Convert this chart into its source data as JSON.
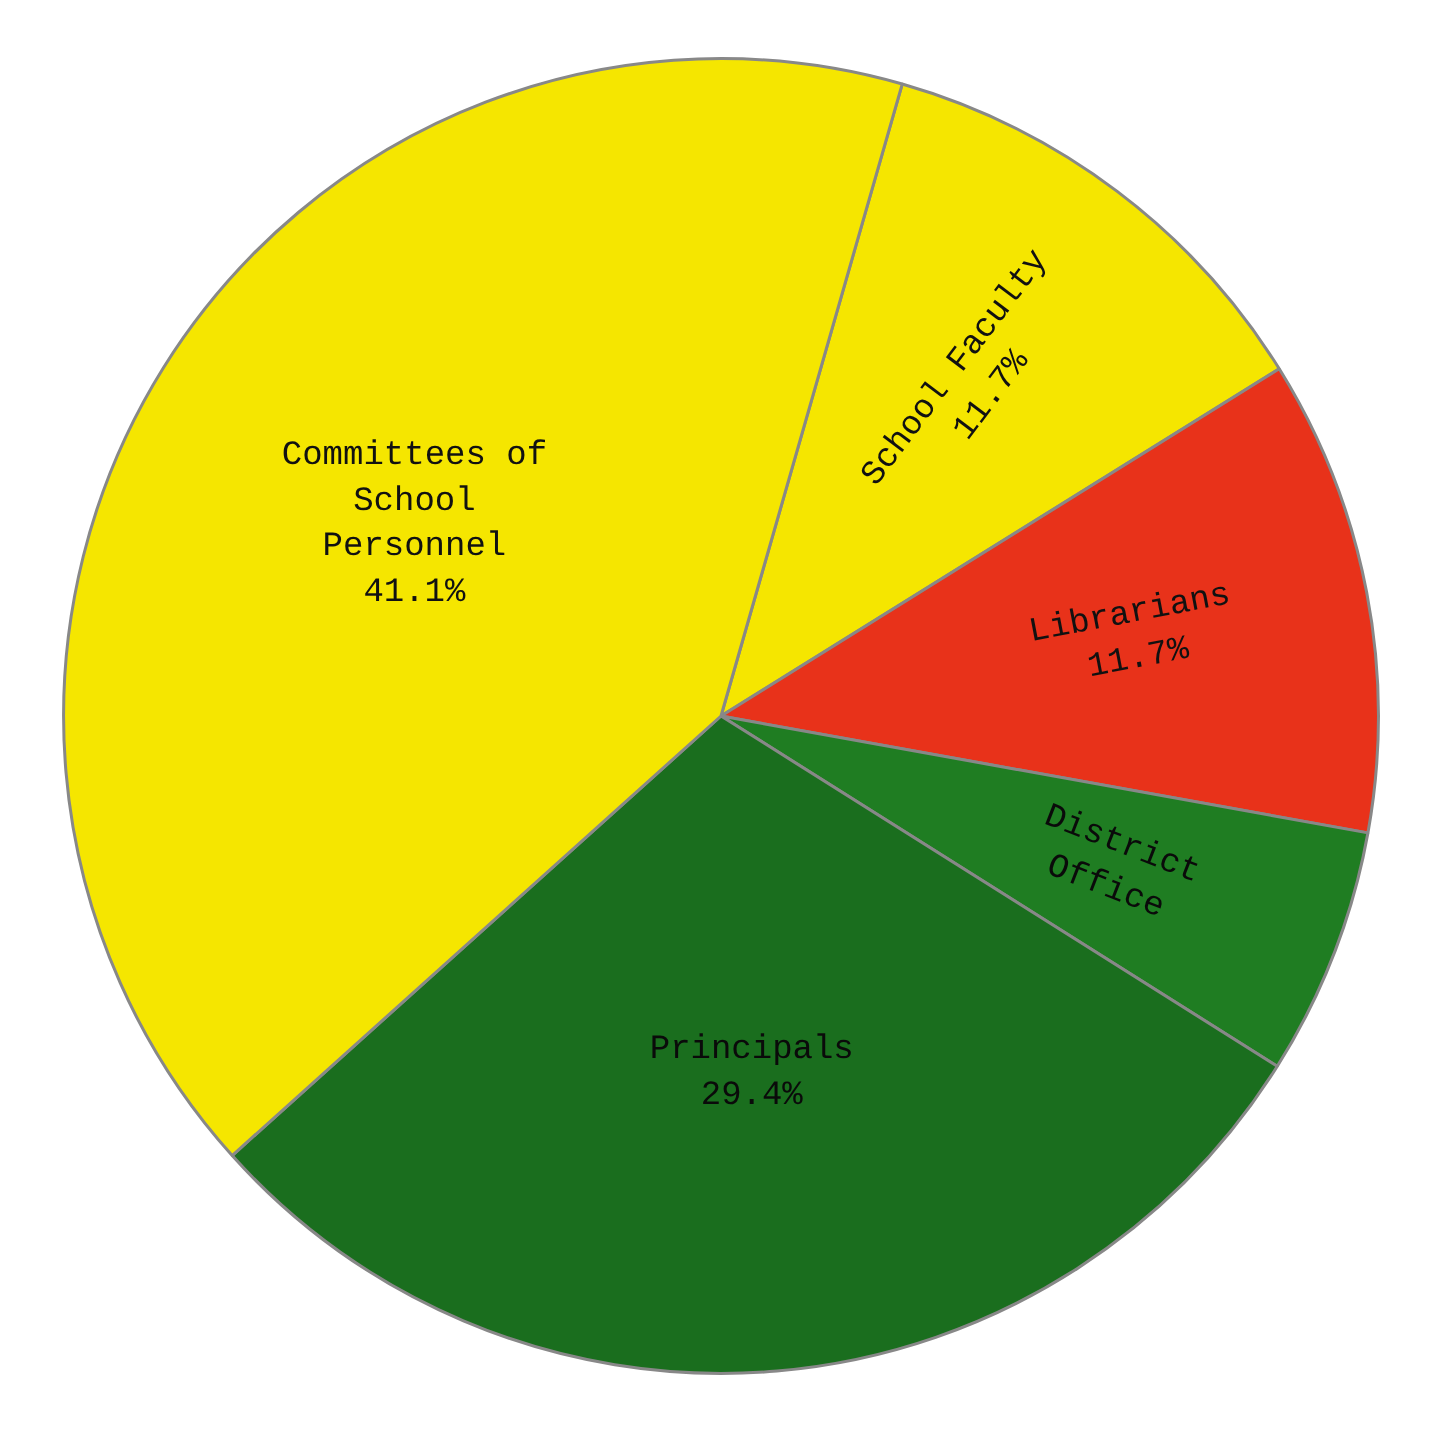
{
  "chart_data": {
    "type": "pie",
    "categories": [
      "School Faculty",
      "Librarians",
      "District Office",
      "Principals",
      "Committees of School Personnel"
    ],
    "values": [
      11.7,
      11.7,
      6.1,
      29.4,
      41.1
    ],
    "value_labels": [
      "11.7%",
      "11.7%",
      null,
      "29.4%",
      "41.1%"
    ],
    "colors": [
      "#f5e600",
      "#e8321a",
      "#1f7d22",
      "#1a6e1e",
      "#f5e600"
    ]
  }
}
